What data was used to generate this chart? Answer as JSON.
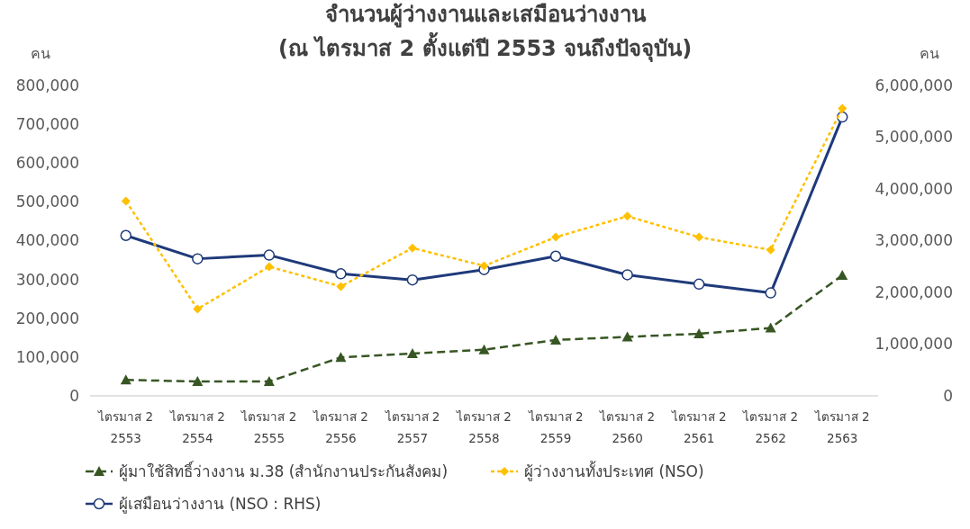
{
  "chart_data": {
    "type": "line",
    "title": "จำนวนผู้ว่างงานและเสมือนว่างงาน",
    "subtitle": "(ณ ไตรมาส 2 ตั้งแต่ปี 2553 จนถึงปัจจุบัน)",
    "ylabel": "คน",
    "y2label": "คน",
    "categories": [
      "ไตรมาส 2 2553",
      "ไตรมาส 2 2554",
      "ไตรมาส 2 2555",
      "ไตรมาส 2 2556",
      "ไตรมาส 2 2557",
      "ไตรมาส 2 2558",
      "ไตรมาส 2 2559",
      "ไตรมาส 2 2560",
      "ไตรมาส 2 2561",
      "ไตรมาส 2 2562",
      "ไตรมาส 2 2563"
    ],
    "series": [
      {
        "name": "ผู้มาใช้สิทธิ์ว่างงาน ม.38 (สำนักงานประกันสังคม)",
        "color": "#375623",
        "marker": "triangle",
        "line_style": "dashed",
        "values": [
          41000,
          37000,
          37000,
          99000,
          109000,
          119000,
          144000,
          152000,
          160000,
          175000,
          311000
        ]
      },
      {
        "name": "ผู้ว่างงานทั้งประเทศ (NSO)",
        "color": "#ffc000",
        "marker": "diamond",
        "line_style": "dotted",
        "values": [
          502000,
          224000,
          333000,
          282000,
          381000,
          335000,
          409000,
          463000,
          409000,
          376000,
          741000
        ]
      },
      {
        "name": "ผู้เสมือนว่างงาน (NSO : RHS)",
        "color": "#1f3a7a",
        "marker": "circle",
        "line_style": "solid",
        "axis": "y2",
        "values": [
          3100000,
          2650000,
          2720000,
          2360000,
          2240000,
          2440000,
          2700000,
          2340000,
          2160000,
          1990000,
          5390000
        ]
      }
    ],
    "ylim": [
      0,
      800000
    ],
    "yticks": [
      {
        "value": 0,
        "label": "0"
      },
      {
        "value": 100000,
        "label": "100,000"
      },
      {
        "value": 200000,
        "label": "200,000"
      },
      {
        "value": 300000,
        "label": "300,000"
      },
      {
        "value": 400000,
        "label": "400,000"
      },
      {
        "value": 500000,
        "label": "500,000"
      },
      {
        "value": 600000,
        "label": "600,000"
      },
      {
        "value": 700000,
        "label": "700,000"
      },
      {
        "value": 800000,
        "label": "800,000"
      }
    ],
    "y2lim": [
      0,
      6000000
    ],
    "y2ticks": [
      {
        "value": 0,
        "label": "0"
      },
      {
        "value": 1000000,
        "label": "1,000,000"
      },
      {
        "value": 2000000,
        "label": "2,000,000"
      },
      {
        "value": 3000000,
        "label": "3,000,000"
      },
      {
        "value": 4000000,
        "label": "4,000,000"
      },
      {
        "value": 5000000,
        "label": "5,000,000"
      },
      {
        "value": 6000000,
        "label": "6,000,000"
      }
    ],
    "grid": false,
    "legend": "bottom"
  }
}
